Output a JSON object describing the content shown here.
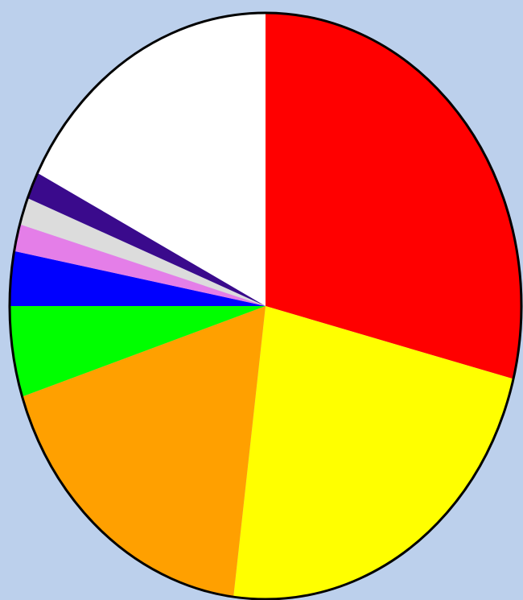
{
  "chart_data": {
    "type": "pie",
    "values": [
      29,
      23,
      18,
      5,
      3,
      1.5,
      1.5,
      1.5,
      17.5
    ],
    "colors": [
      "#ff0000",
      "#ffff00",
      "#ffa000",
      "#00ff00",
      "#0000ff",
      "#e47ee8",
      "#dcdcdc",
      "#3a0a8c",
      "#ffffff"
    ],
    "start_angle": 90,
    "direction": "clockwise"
  }
}
